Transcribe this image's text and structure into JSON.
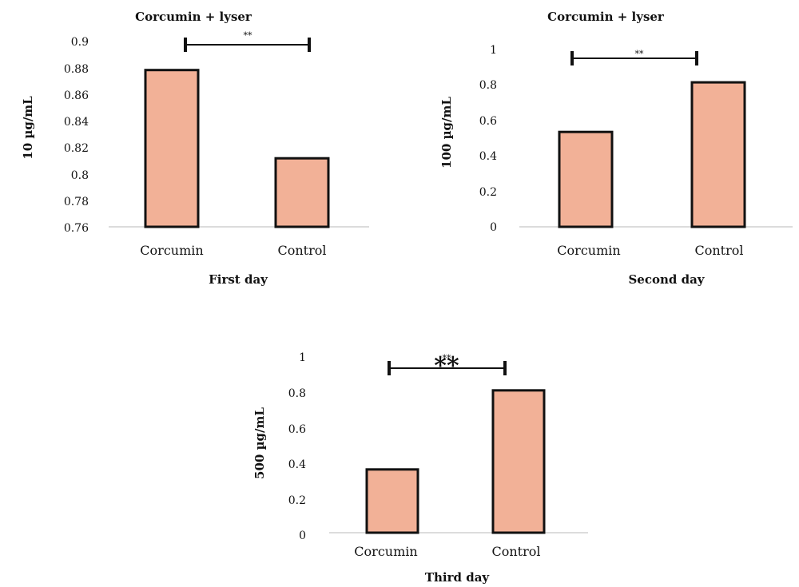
{
  "chart_data": [
    {
      "type": "bar",
      "title": "Corcumin + lyser",
      "xlabel": "First day",
      "ylabel": "10 µg/mL",
      "categories": [
        "Corcumin",
        "Control"
      ],
      "values": [
        0.879,
        0.812
      ],
      "ylim": [
        0.76,
        0.9
      ],
      "yticks": [
        "0.76",
        "0.78",
        "0.8",
        "0.82",
        "0.84",
        "0.86",
        "0.88",
        "0.9"
      ],
      "grid": false,
      "legend": "none",
      "significance": {
        "from": "Corcumin",
        "to": "Control",
        "label": "**",
        "y": 0.895
      },
      "bar_color": "#f2b197",
      "bar_edge_color": "#111111",
      "baseline_color": "#d0d0d0"
    },
    {
      "type": "bar",
      "title": "Corcumin + lyser",
      "xlabel": "Second day",
      "ylabel": "100 µg/mL",
      "categories": [
        "Corcumin",
        "Control"
      ],
      "values": [
        0.535,
        0.815
      ],
      "ylim": [
        0,
        1
      ],
      "yticks": [
        "0",
        "0.2",
        "0.4",
        "0.6",
        "0.8",
        "1"
      ],
      "grid": false,
      "legend": "none",
      "significance": {
        "from": "Corcumin",
        "to": "Control",
        "label": "**",
        "y": 0.945
      },
      "bar_color": "#f2b197",
      "bar_edge_color": "#111111",
      "baseline_color": "#d0d0d0"
    },
    {
      "type": "bar",
      "title": "",
      "xlabel": "Third day",
      "ylabel": "500 µg/mL",
      "categories": [
        "Corcumin",
        "Control"
      ],
      "values": [
        0.36,
        0.81
      ],
      "ylim": [
        0,
        1
      ],
      "yticks": [
        "0",
        "0.2",
        "0.4",
        "0.6",
        "0.8",
        "1"
      ],
      "grid": false,
      "legend": "none",
      "significance": {
        "from": "Corcumin",
        "to": "Control",
        "label": "**",
        "big_label": "**",
        "y": 0.935
      },
      "bar_color": "#f2b197",
      "bar_edge_color": "#111111",
      "baseline_color": "#d0d0d0"
    }
  ]
}
